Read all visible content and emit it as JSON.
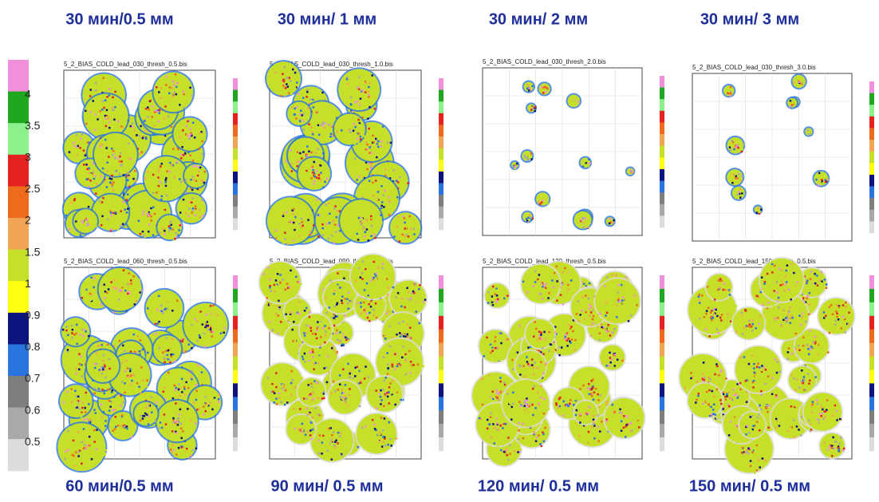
{
  "headers": {
    "top": [
      "30 мин/0.5 мм",
      "30 мин/ 1 мм",
      "30 мин/ 2 мм",
      "30 мин/ 3 мм"
    ],
    "bottom": [
      "60 мин/0.5 мм",
      "90 мин/ 0.5 мм",
      "120 мин/ 0.5 мм",
      "150 мин/ 0.5 мм"
    ]
  },
  "panels": [
    {
      "title": "5_2_BIAS_COLD_lead_030_thresh_0.5.bis"
    },
    {
      "title": "5_2_BIAS_COLD_lead_030_thresh_1.0.bis"
    },
    {
      "title": "5_2_BIAS_COLD_lead_030_thresh_2.0.bis"
    },
    {
      "title": "5_2_BIAS_COLD_lead_030_thresh_3.0.bis"
    },
    {
      "title": "5_2_BIAS_COLD_lead_060_thresh_0.5.bis"
    },
    {
      "title": "5_2_BIAS_COLD_lead_090_thresh_0.5.bis"
    },
    {
      "title": "5_2_BIAS_COLD_lead_120_thresh_0.5.bis"
    },
    {
      "title": "5_2_BIAS_COLD_lead_150_thresh_0.5.bis"
    }
  ],
  "legend": {
    "labels": [
      "4",
      "3.5",
      "3",
      "2.5",
      "2",
      "1.5",
      "1",
      "0.9",
      "0.8",
      "0.7",
      "0.6",
      "0.5"
    ],
    "colors": [
      "#f28fdc",
      "#1fa81f",
      "#8cf08c",
      "#e52222",
      "#ee6a1c",
      "#f2a455",
      "#c6e02a",
      "#ffff10",
      "#0d1480",
      "#2a74e0",
      "#7e7e7e",
      "#a9a9a9",
      "#dcdcdc"
    ]
  }
}
